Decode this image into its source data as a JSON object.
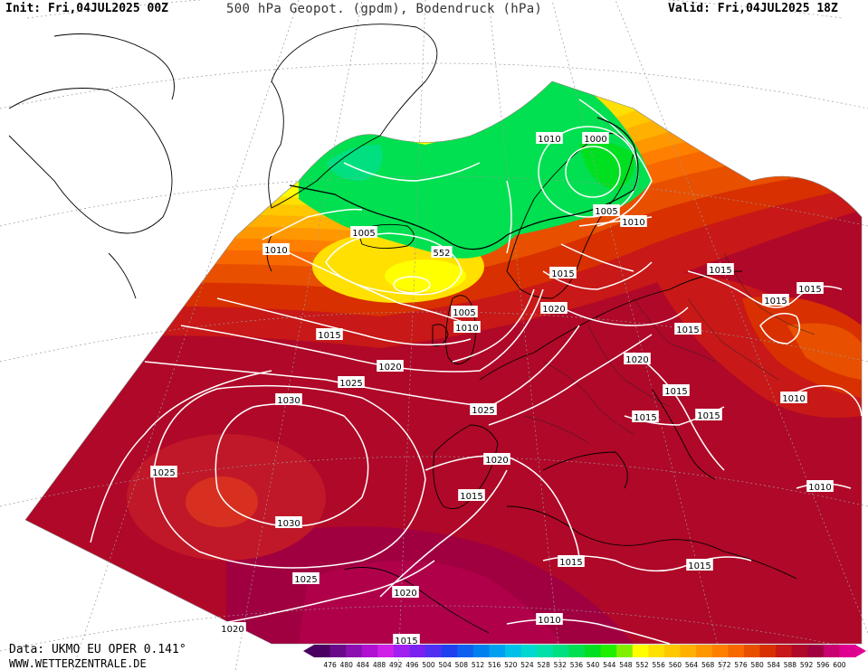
{
  "header": {
    "init": "Init: Fri,04JUL2025 00Z",
    "title": "500 hPa Geopot. (gpdm), Bodendruck (hPa)",
    "valid": "Valid: Fri,04JUL2025 18Z"
  },
  "footer": {
    "source": "Data: UKMO EU OPER 0.141°",
    "website": "WWW.WETTERZENTRALE.DE"
  },
  "legend": {
    "ticks": [
      "476",
      "480",
      "484",
      "488",
      "492",
      "496",
      "500",
      "504",
      "508",
      "512",
      "516",
      "520",
      "524",
      "528",
      "532",
      "536",
      "540",
      "544",
      "548",
      "552",
      "556",
      "560",
      "564",
      "568",
      "572",
      "576",
      "580",
      "584",
      "588",
      "592",
      "596",
      "600"
    ],
    "colors": [
      "#4a0060",
      "#6a0a8a",
      "#8c10b0",
      "#b010d0",
      "#d020e8",
      "#a020f0",
      "#7a20f0",
      "#5030f0",
      "#2040f0",
      "#1060f0",
      "#0080f0",
      "#00a0f0",
      "#00c0e8",
      "#00d8d0",
      "#00e0a8",
      "#00e080",
      "#00e050",
      "#00e020",
      "#20f000",
      "#80f000",
      "#ffff00",
      "#ffe000",
      "#ffc800",
      "#ffb000",
      "#ff9800",
      "#ff8000",
      "#f86800",
      "#e85000",
      "#d83000",
      "#c81818",
      "#b00828",
      "#a00040",
      "#c80070",
      "#e00090"
    ]
  },
  "isobars": [
    {
      "label": "1010"
    },
    {
      "label": "1000"
    },
    {
      "label": "1005"
    },
    {
      "label": "1010"
    },
    {
      "label": "1010"
    },
    {
      "label": "1005"
    },
    {
      "label": "552"
    },
    {
      "label": "1015"
    },
    {
      "label": "1015"
    },
    {
      "label": "1015"
    },
    {
      "label": "1015"
    },
    {
      "label": "1005"
    },
    {
      "label": "1010"
    },
    {
      "label": "1020"
    },
    {
      "label": "1015"
    },
    {
      "label": "1015"
    },
    {
      "label": "1020"
    },
    {
      "label": "1020"
    },
    {
      "label": "1025"
    },
    {
      "label": "1015"
    },
    {
      "label": "1010"
    },
    {
      "label": "1030"
    },
    {
      "label": "1025"
    },
    {
      "label": "1015"
    },
    {
      "label": "1015"
    },
    {
      "label": "1025"
    },
    {
      "label": "1020"
    },
    {
      "label": "1015"
    },
    {
      "label": "1010"
    },
    {
      "label": "1030"
    },
    {
      "label": "1025"
    },
    {
      "label": "1015"
    },
    {
      "label": "1015"
    },
    {
      "label": "1020"
    },
    {
      "label": "1010"
    },
    {
      "label": "1020"
    },
    {
      "label": "1015"
    }
  ]
}
